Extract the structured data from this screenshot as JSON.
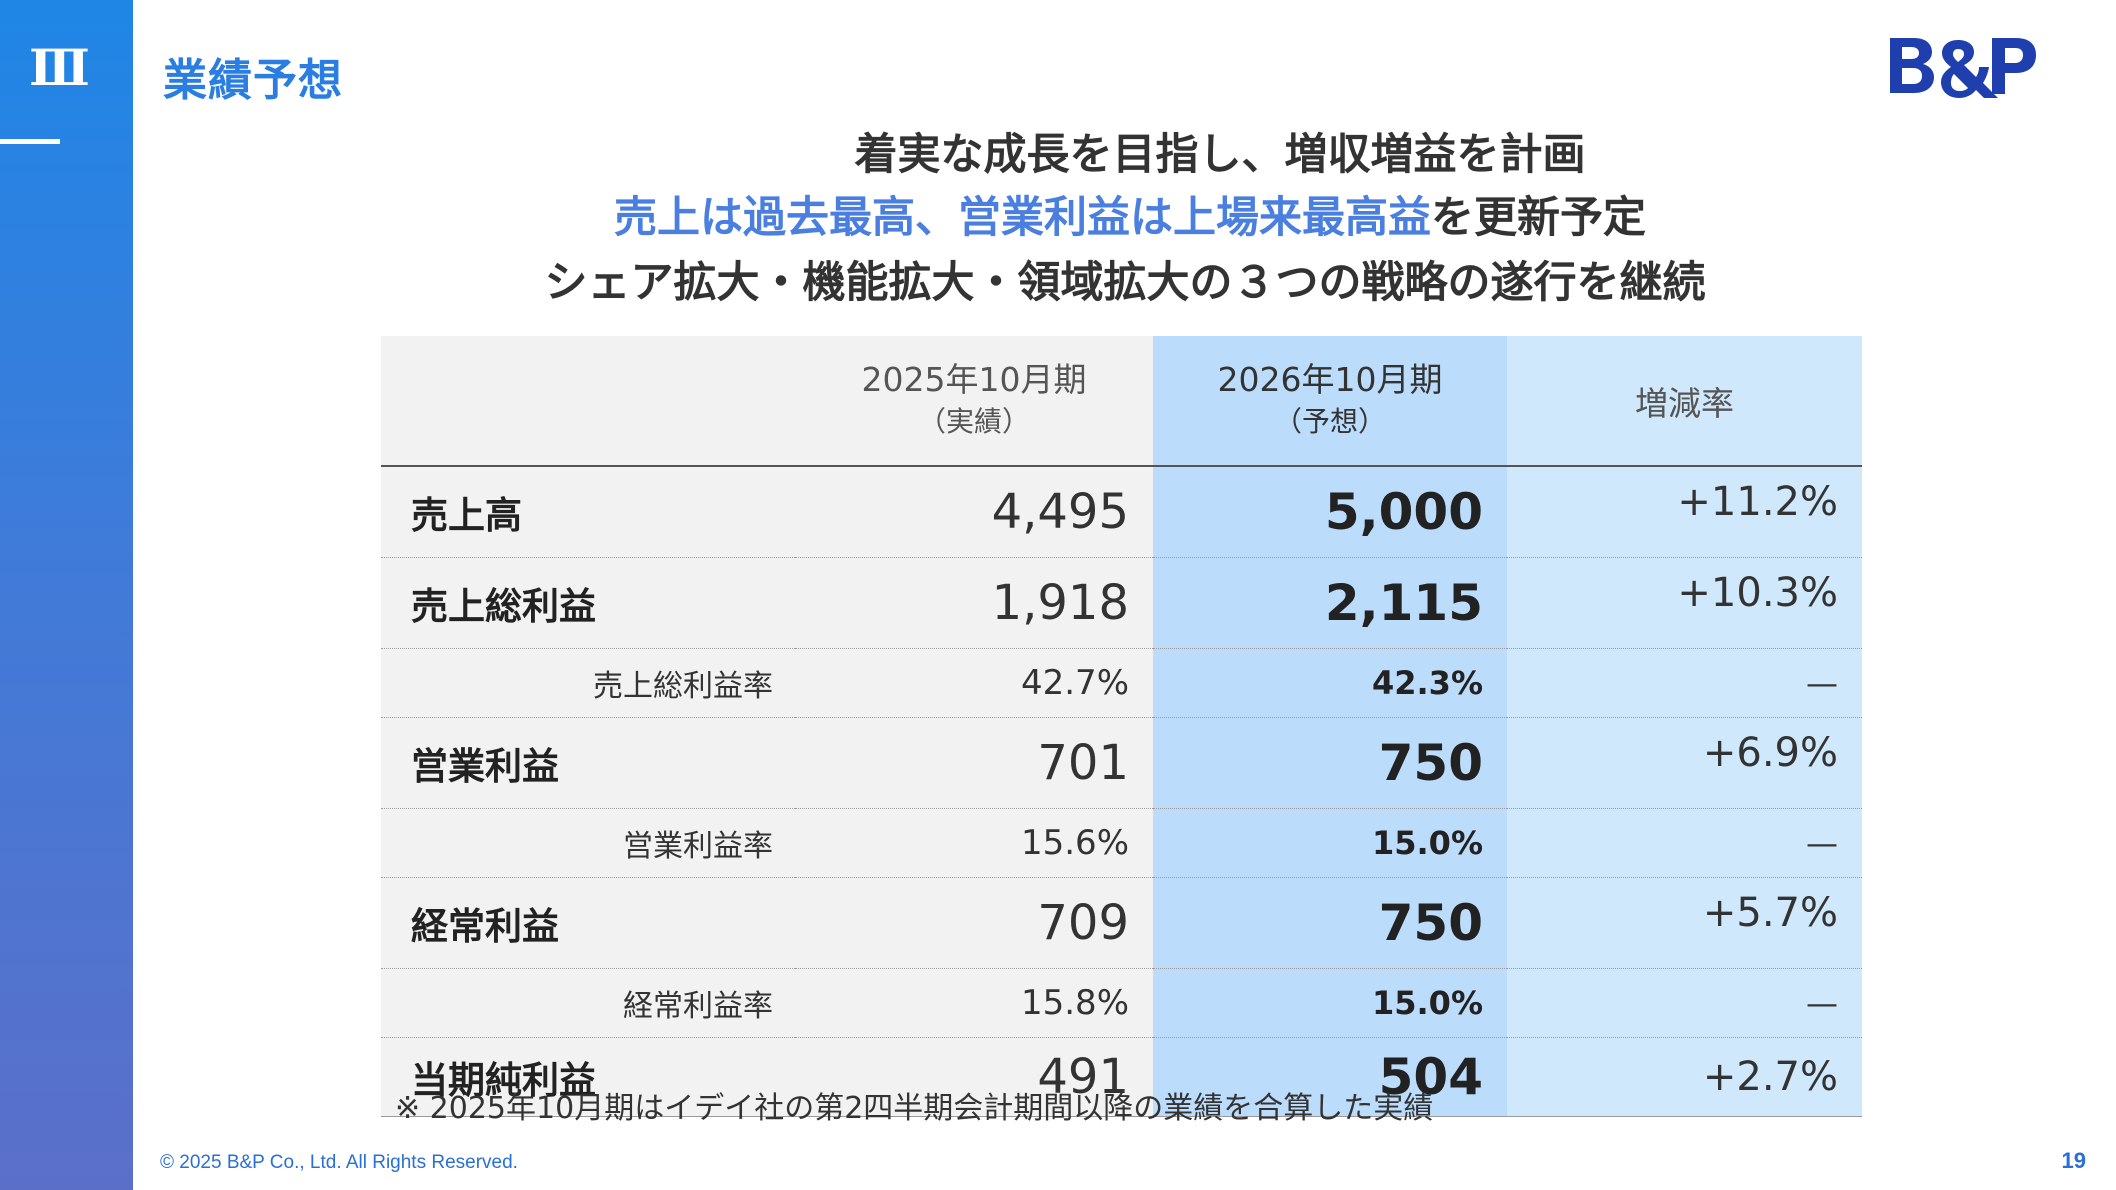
{
  "section": {
    "number": "Ⅲ"
  },
  "header": {
    "title": "業績予想"
  },
  "logo": {
    "text": "B&P",
    "color": "#1f3fae"
  },
  "headline": {
    "line1": "着実な成長を目指し、増収増益を計画",
    "line2_highlight": "売上は過去最高、営業利益は上場来最高益",
    "line2_rest": "を更新予定",
    "line3": "シェア拡大・機能拡大・領域拡大の３つの戦略の遂行を継続"
  },
  "table": {
    "headers": {
      "prev": "2025年10月期",
      "prev_sub": "（実績）",
      "forecast": "2026年10月期",
      "forecast_sub": "（予想）",
      "rate": "増減率"
    },
    "rows": [
      {
        "label": "売上高",
        "prev": "4,495",
        "forecast": "5,000",
        "rate": "+11.2%"
      },
      {
        "label": "売上総利益",
        "prev": "1,918",
        "forecast": "2,115",
        "rate": "+10.3%"
      },
      {
        "label": "売上総利益率",
        "prev": "42.7%",
        "forecast": "42.3%",
        "rate": "—"
      },
      {
        "label": "営業利益",
        "prev": "701",
        "forecast": "750",
        "rate": "+6.9%"
      },
      {
        "label": "営業利益率",
        "prev": "15.6%",
        "forecast": "15.0%",
        "rate": "—"
      },
      {
        "label": "経常利益",
        "prev": "709",
        "forecast": "750",
        "rate": "+5.7%"
      },
      {
        "label": "経常利益率",
        "prev": "15.8%",
        "forecast": "15.0%",
        "rate": "—"
      },
      {
        "label": "当期純利益",
        "prev": "491",
        "forecast": "504",
        "rate": "+2.7%"
      }
    ]
  },
  "note": "※ 2025年10月期はイデイ社の第2四半期会計期間以降の業績を合算した実績",
  "footer": {
    "copyright": "© 2025 B&P Co., Ltd. All Rights Reserved.",
    "page": "19"
  },
  "colors": {
    "accent": "#2a7de1",
    "forecast_column": "#bcdcfb",
    "rate_column": "#cfe8fb",
    "label_columns": "#f2f2f2"
  }
}
